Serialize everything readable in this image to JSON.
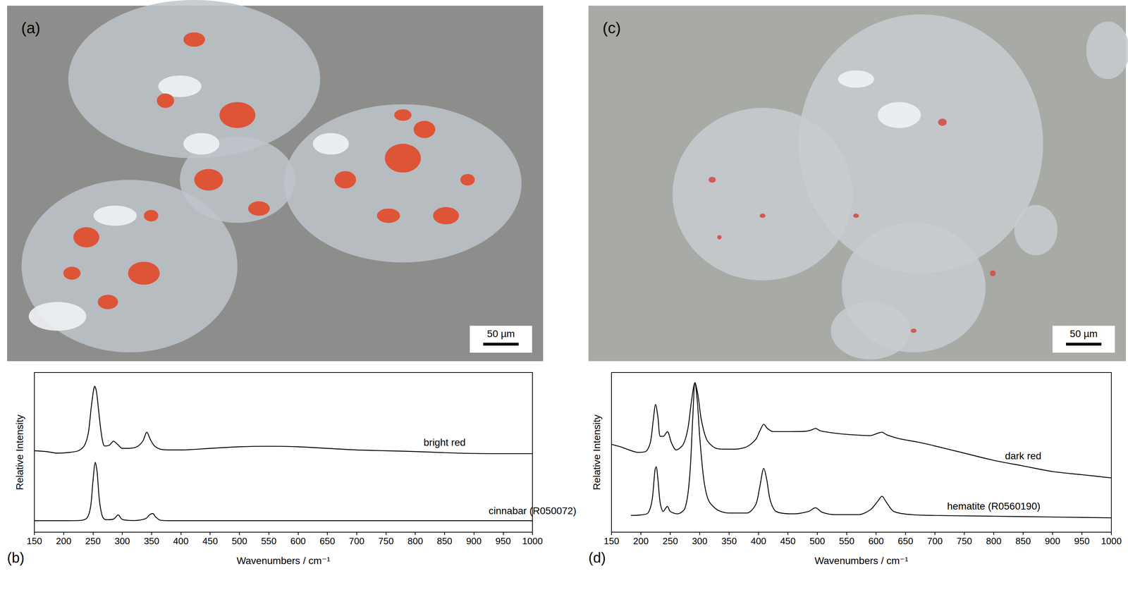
{
  "chart_data": [
    {
      "type": "line",
      "panel_label": "(b)",
      "xlabel": "Wavenumbers / cm⁻¹",
      "ylabel": "Relative Intensity",
      "xlim": [
        150,
        1000
      ],
      "xticks": [
        150,
        200,
        250,
        300,
        350,
        400,
        450,
        500,
        550,
        600,
        650,
        700,
        750,
        800,
        850,
        900,
        950,
        1000
      ],
      "ylim": [
        0,
        100
      ],
      "tick_labels": "x",
      "grid": false,
      "series": [
        {
          "name": "bright red",
          "color": "#000000",
          "x": [
            150,
            170,
            190,
            210,
            225,
            235,
            242,
            247,
            251,
            253,
            256,
            260,
            265,
            270,
            278,
            285,
            292,
            300,
            310,
            325,
            335,
            342,
            348,
            355,
            365,
            380,
            400,
            450,
            500,
            550,
            600,
            650,
            700,
            750,
            800,
            850,
            900,
            950,
            1000
          ],
          "values": [
            51,
            50.5,
            49.5,
            50,
            51,
            54,
            62,
            78,
            89,
            91.4,
            88,
            75,
            60,
            54,
            54.5,
            57,
            55,
            52.5,
            52.5,
            53.5,
            57,
            62.6,
            58,
            54,
            52,
            51.5,
            51.5,
            52.5,
            53.5,
            53.8,
            53.5,
            52.5,
            51.5,
            51,
            50.5,
            49.8,
            49.3,
            49.2,
            49.2
          ]
        },
        {
          "name": "cinnabar (R050072)",
          "color": "#000000",
          "x": [
            150,
            200,
            230,
            240,
            246,
            250,
            254,
            257,
            261,
            266,
            272,
            285,
            293,
            300,
            320,
            340,
            347,
            352,
            357,
            365,
            380,
            500,
            1000
          ],
          "values": [
            7.2,
            7.2,
            7.4,
            9,
            16,
            32,
            43.7,
            38,
            20,
            10,
            7.8,
            8.2,
            10.8,
            8,
            7.3,
            8.5,
            11,
            11.7,
            9.5,
            7.5,
            7.2,
            7.2,
            7.2
          ]
        }
      ]
    },
    {
      "type": "line",
      "panel_label": "(d)",
      "xlabel": "Wavenumbers / cm⁻¹",
      "ylabel": "Relative Intensity",
      "xlim": [
        150,
        1000
      ],
      "xticks": [
        150,
        200,
        250,
        300,
        350,
        400,
        450,
        500,
        550,
        600,
        650,
        700,
        750,
        800,
        850,
        900,
        950,
        1000
      ],
      "ylim": [
        0,
        100
      ],
      "tick_labels": "x",
      "grid": false,
      "series": [
        {
          "name": "dark red",
          "color": "#000000",
          "x": [
            150,
            165,
            180,
            195,
            208,
            216,
            221,
            225,
            229,
            233,
            238,
            245,
            252,
            260,
            272,
            280,
            286,
            292,
            297,
            303,
            312,
            325,
            340,
            360,
            380,
            395,
            403,
            409,
            415,
            425,
            450,
            480,
            490,
            497,
            505,
            530,
            560,
            590,
            603,
            610,
            618,
            640,
            670,
            700,
            750,
            800,
            850,
            900,
            950,
            1000
          ],
          "values": [
            55,
            53.5,
            51.5,
            50,
            50.5,
            56,
            70,
            80,
            72,
            60,
            60,
            63,
            56,
            51.5,
            55,
            65,
            82,
            93.7,
            86,
            70,
            58,
            53,
            52,
            52,
            53.5,
            58,
            64,
            67.6,
            65,
            63,
            63,
            63.2,
            64,
            65,
            63.5,
            62,
            61,
            60.5,
            62,
            62.6,
            61,
            58.5,
            56.5,
            54,
            49.5,
            45,
            41.5,
            38,
            36,
            34
          ]
        },
        {
          "name": "hematite (R0560190)",
          "color": "#000000",
          "x": [
            183,
            200,
            212,
            219,
            224,
            226,
            229,
            233,
            238,
            245,
            250,
            262,
            275,
            283,
            288,
            292,
            296,
            300,
            307,
            315,
            330,
            350,
            380,
            395,
            402,
            409,
            414,
            420,
            430,
            460,
            485,
            497,
            508,
            530,
            570,
            590,
            603,
            610,
            617,
            630,
            660,
            700,
            800,
            900,
            1000
          ],
          "values": [
            10.5,
            10.8,
            12,
            20,
            39,
            41,
            33,
            18,
            13,
            16.2,
            13,
            11.5,
            15,
            35,
            70,
            93.7,
            82,
            60,
            33,
            20,
            14,
            12,
            12,
            17,
            28,
            40,
            33,
            20,
            13,
            11.5,
            13,
            15.3,
            12.5,
            11,
            11,
            14,
            19.5,
            22.5,
            19,
            13,
            11,
            10.5,
            10,
            9.5,
            9
          ]
        }
      ]
    }
  ],
  "images": [
    {
      "label": "(a)",
      "scale_bar": "50 µm"
    },
    {
      "label": "(c)",
      "scale_bar": "50 µm"
    }
  ]
}
